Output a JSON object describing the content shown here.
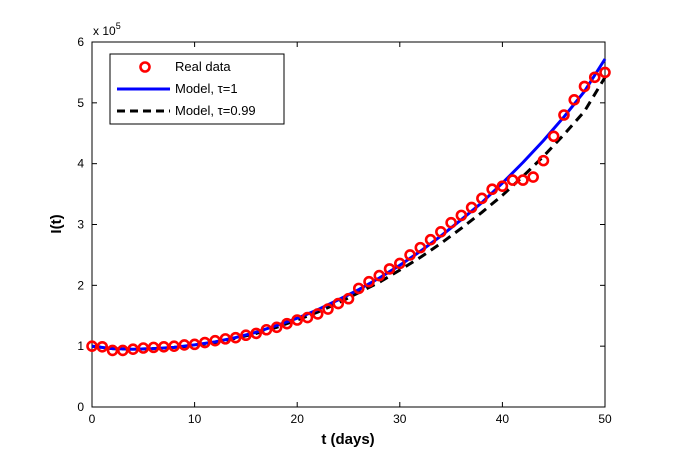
{
  "chart_data": {
    "type": "line",
    "title": "",
    "xlabel": "t (days)",
    "ylabel": "I(t)",
    "xlim": [
      0,
      50
    ],
    "ylim": [
      0,
      6
    ],
    "xticks": [
      0,
      10,
      20,
      30,
      40,
      50
    ],
    "yticks": [
      0,
      1,
      2,
      3,
      4,
      5,
      6
    ],
    "xtick_labels": [
      "0",
      "10",
      "20",
      "30",
      "40",
      "50"
    ],
    "ytick_labels": [
      "0",
      "1",
      "2",
      "3",
      "4",
      "5",
      "6"
    ],
    "y_multiplier_base": "x 10",
    "y_multiplier_exp": "5",
    "legend_position": "top-left",
    "series": [
      {
        "name": "Real data",
        "style": "circle-markers",
        "color": "#ff0000",
        "x": [
          0,
          1,
          2,
          3,
          4,
          5,
          6,
          7,
          8,
          9,
          10,
          11,
          12,
          13,
          14,
          15,
          16,
          17,
          18,
          19,
          20,
          21,
          22,
          23,
          24,
          25,
          26,
          27,
          28,
          29,
          30,
          31,
          32,
          33,
          34,
          35,
          36,
          37,
          38,
          39,
          40,
          41,
          42,
          43,
          44,
          45,
          46,
          47,
          48,
          49,
          50
        ],
        "y": [
          1.0,
          0.99,
          0.93,
          0.93,
          0.95,
          0.97,
          0.98,
          0.99,
          1.0,
          1.02,
          1.03,
          1.06,
          1.09,
          1.12,
          1.14,
          1.18,
          1.21,
          1.27,
          1.31,
          1.37,
          1.43,
          1.47,
          1.53,
          1.61,
          1.7,
          1.78,
          1.95,
          2.06,
          2.16,
          2.27,
          2.36,
          2.5,
          2.62,
          2.75,
          2.88,
          3.03,
          3.15,
          3.28,
          3.43,
          3.58,
          3.63,
          3.73,
          3.73,
          3.78,
          4.05,
          4.45,
          4.8,
          5.05,
          5.27,
          5.42,
          5.5
        ]
      },
      {
        "name": "Model, τ=1",
        "style": "solid",
        "color": "#0000ff",
        "x": [
          0,
          2,
          4,
          6,
          8,
          10,
          12,
          14,
          16,
          18,
          20,
          22,
          24,
          26,
          28,
          30,
          32,
          34,
          36,
          38,
          40,
          42,
          44,
          46,
          48,
          50
        ],
        "y": [
          1.0,
          0.96,
          0.95,
          0.96,
          0.98,
          1.02,
          1.07,
          1.14,
          1.23,
          1.34,
          1.46,
          1.6,
          1.76,
          1.93,
          2.12,
          2.33,
          2.56,
          2.81,
          3.08,
          3.36,
          3.68,
          4.02,
          4.38,
          4.77,
          5.19,
          5.72
        ]
      },
      {
        "name": "Model, τ=0.99",
        "style": "dashed",
        "color": "#000000",
        "x": [
          0,
          2,
          4,
          6,
          8,
          10,
          12,
          14,
          16,
          18,
          20,
          22,
          24,
          26,
          28,
          30,
          32,
          34,
          36,
          38,
          40,
          42,
          44,
          46,
          48,
          50
        ],
        "y": [
          1.0,
          0.96,
          0.95,
          0.96,
          0.98,
          1.01,
          1.06,
          1.13,
          1.21,
          1.31,
          1.43,
          1.56,
          1.71,
          1.88,
          2.05,
          2.25,
          2.46,
          2.69,
          2.94,
          3.2,
          3.48,
          3.79,
          4.12,
          4.48,
          4.86,
          5.42
        ]
      }
    ]
  }
}
